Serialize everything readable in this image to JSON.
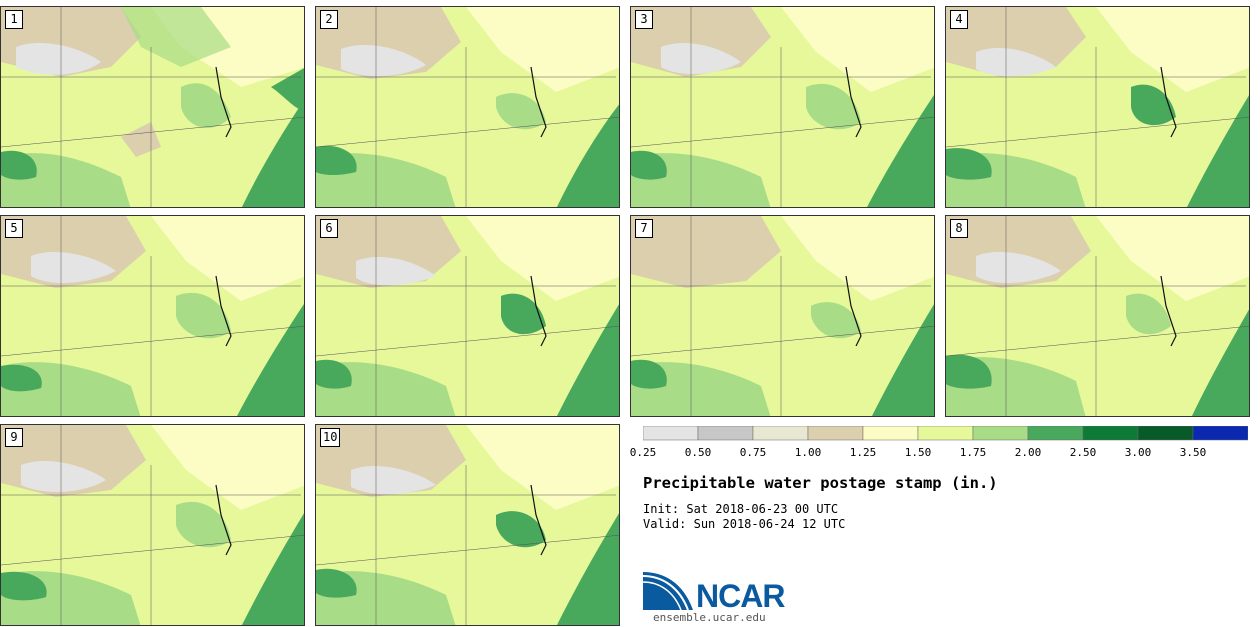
{
  "panels": [
    {
      "label": "1"
    },
    {
      "label": "2"
    },
    {
      "label": "3"
    },
    {
      "label": "4"
    },
    {
      "label": "5"
    },
    {
      "label": "6"
    },
    {
      "label": "7"
    },
    {
      "label": "8"
    },
    {
      "label": "9"
    },
    {
      "label": "10"
    }
  ],
  "colorbar": {
    "levels": [
      "0.25",
      "0.50",
      "0.75",
      "1.00",
      "1.25",
      "1.50",
      "1.75",
      "2.00",
      "2.50",
      "3.00",
      "3.50"
    ],
    "colors": [
      "#e4e4e4",
      "#c7c7c7",
      "#e8e8d2",
      "#dccfae",
      "#fbfdc4",
      "#e6f89a",
      "#a8dc86",
      "#48a85c",
      "#0d7a36",
      "#085a28",
      "#0a28b0"
    ]
  },
  "title": "Precipitable water postage stamp (in.)",
  "init": "Sat 2018-06-23 00 UTC",
  "init_label": "Init:",
  "valid": "Sun 2018-06-24 12 UTC",
  "valid_label": "Valid:",
  "logo_text": "NCAR",
  "logo_url": "ensemble.ucar.edu"
}
